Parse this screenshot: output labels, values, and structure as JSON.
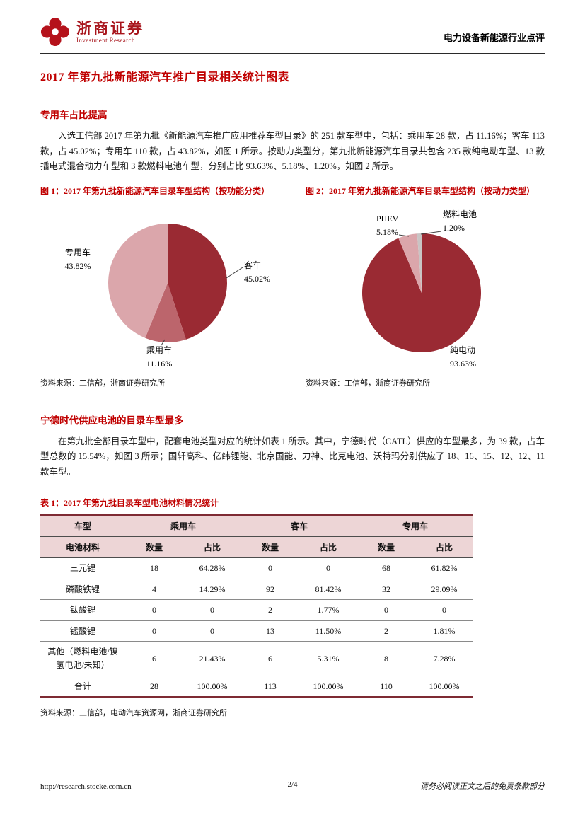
{
  "header": {
    "brand_cn": "浙商证券",
    "brand_en": "Investment Research",
    "report_type": "电力设备新能源行业点评"
  },
  "title": "2017 年第九批新能源汽车推广目录相关统计图表",
  "sections": {
    "s1_heading": "专用车占比提高",
    "s1_body": "入选工信部 2017 年第九批《新能源汽车推广应用推荐车型目录》的 251 款车型中，包括：乘用车 28 款，占 11.16%；客车 113 款，占 45.02%；专用车 110 款，占 43.82%，如图 1 所示。按动力类型分，第九批新能源汽车目录共包含 235 款纯电动车型、13 款插电式混合动力车型和 3 款燃料电池车型，分别占比 93.63%、5.18%、1.20%，如图 2 所示。",
    "s2_heading": "宁德时代供应电池的目录车型最多",
    "s2_body": "在第九批全部目录车型中，配套电池类型对应的统计如表 1 所示。其中，宁德时代（CATL）供应的车型最多，为 39 款，占车型总数的 15.54%，如图 3 所示；国轩高科、亿纬锂能、北京国能、力神、比克电池、沃特玛分别供应了 18、16、15、12、12、11 款车型。"
  },
  "figures": {
    "fig1": {
      "caption": "图 1：2017 年第九批新能源汽车目录车型结构（按功能分类）",
      "source": "资料来源：工信部，浙商证券研究所",
      "labels": {
        "bus": {
          "name": "客车",
          "pct": "45.02%"
        },
        "passenger": {
          "name": "乘用车",
          "pct": "11.16%"
        },
        "special": {
          "name": "专用车",
          "pct": "43.82%"
        }
      }
    },
    "fig2": {
      "caption": "图 2：2017 年第九批新能源汽车目录车型结构（按动力类型）",
      "source": "资料来源：工信部，浙商证券研究所",
      "labels": {
        "bev": {
          "name": "纯电动",
          "pct": "93.63%"
        },
        "phev": {
          "name": "PHEV",
          "pct": "5.18%"
        },
        "fcev": {
          "name": "燃料电池",
          "pct": "1.20%"
        }
      }
    }
  },
  "chart_data": [
    {
      "type": "pie",
      "title": "2017年第九批新能源汽车目录车型结构（按功能分类）",
      "labels": [
        "客车",
        "乘用车",
        "专用车"
      ],
      "values": [
        45.02,
        11.16,
        43.82
      ],
      "colors": [
        "#9A2A33",
        "#BC656C",
        "#DBA6AB"
      ],
      "start_angle": 0,
      "direction": "clockwise",
      "legend_position": "none"
    },
    {
      "type": "pie",
      "title": "2017年第九批新能源汽车目录车型结构（按动力类型）",
      "labels": [
        "纯电动",
        "PHEV",
        "燃料电池"
      ],
      "values": [
        93.63,
        5.18,
        1.2
      ],
      "colors": [
        "#9A2A33",
        "#DBA6AB",
        "#C9C4C4"
      ],
      "start_angle": 0,
      "direction": "clockwise",
      "legend_position": "none"
    }
  ],
  "table": {
    "caption": "表 1：2017 年第九批目录车型电池材料情况统计",
    "header_row1": [
      "车型",
      "乘用车",
      "客车",
      "专用车"
    ],
    "header_row2": [
      "电池材料",
      "数量",
      "占比",
      "数量",
      "占比",
      "数量",
      "占比"
    ],
    "rows": [
      [
        "三元锂",
        "18",
        "64.28%",
        "0",
        "0",
        "68",
        "61.82%"
      ],
      [
        "磷酸铁锂",
        "4",
        "14.29%",
        "92",
        "81.42%",
        "32",
        "29.09%"
      ],
      [
        "钛酸锂",
        "0",
        "0",
        "2",
        "1.77%",
        "0",
        "0"
      ],
      [
        "锰酸锂",
        "0",
        "0",
        "13",
        "11.50%",
        "2",
        "1.81%"
      ],
      [
        "其他（燃料电池/镍\n氢电池/未知）",
        "6",
        "21.43%",
        "6",
        "5.31%",
        "8",
        "7.28%"
      ],
      [
        "合计",
        "28",
        "100.00%",
        "113",
        "100.00%",
        "110",
        "100.00%"
      ]
    ],
    "source": "资料来源：工信部，电动汽车资源网，浙商证券研究所"
  },
  "theme": {
    "accent_red": "#C00000",
    "brand_red": "#A8151C",
    "table_header_bg": "#EDD5D6",
    "pie_dark_red": "#9A2A33",
    "pie_light_pink": "#DBA6AB",
    "pie_mid_rose": "#BC656C",
    "pie_gray": "#C9C4C4"
  },
  "footer": {
    "url": "http://research.stocke.com.cn",
    "page": "2/4",
    "disclaimer": "请务必阅读正文之后的免责条款部分"
  }
}
